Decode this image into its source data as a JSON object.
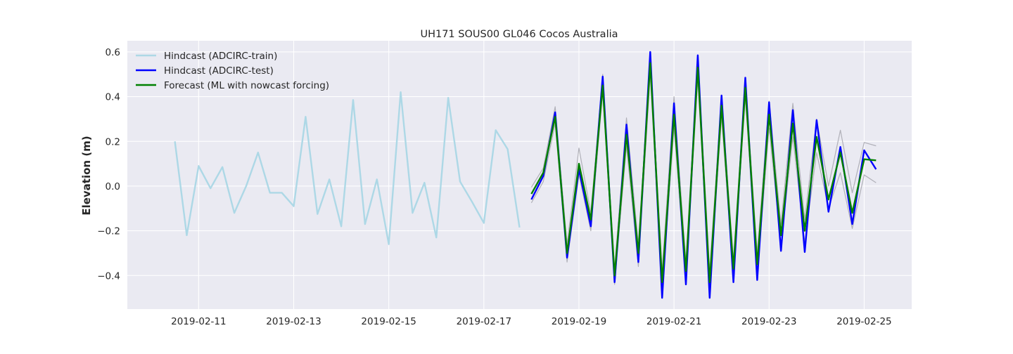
{
  "chart_data": {
    "type": "line",
    "title": "UH171 SOUS00 GL046 Cocos Australia",
    "xlabel": "",
    "ylabel": "Elevation (m)",
    "x_ticks": [
      "2019-02-11",
      "2019-02-13",
      "2019-02-15",
      "2019-02-17",
      "2019-02-19",
      "2019-02-21",
      "2019-02-23",
      "2019-02-25"
    ],
    "y_ticks": [
      "0.6",
      "0.4",
      "0.2",
      "0.0",
      "−0.2",
      "−0.4"
    ],
    "xlim": [
      "2019-02-09T12:00",
      "2019-02-26T00:00"
    ],
    "ylim": [
      -0.55,
      0.65
    ],
    "grid": true,
    "legend_position": "top-left",
    "colors": {
      "background": "#eaeaf2",
      "grid": "#ffffff",
      "train": "#add8e6",
      "test": "#0000ff",
      "forecast": "#008000",
      "band": "#b0b0b8"
    },
    "series": [
      {
        "name": "Hindcast (ADCIRC-train)",
        "color": "#add8e6",
        "x": [
          "2019-02-10T12:00",
          "2019-02-10T18:00",
          "2019-02-11T00:00",
          "2019-02-11T06:00",
          "2019-02-11T12:00",
          "2019-02-11T18:00",
          "2019-02-12T00:00",
          "2019-02-12T06:00",
          "2019-02-12T12:00",
          "2019-02-12T18:00",
          "2019-02-13T00:00",
          "2019-02-13T06:00",
          "2019-02-13T12:00",
          "2019-02-13T18:00",
          "2019-02-14T00:00",
          "2019-02-14T06:00",
          "2019-02-14T12:00",
          "2019-02-14T18:00",
          "2019-02-15T00:00",
          "2019-02-15T06:00",
          "2019-02-15T12:00",
          "2019-02-15T18:00",
          "2019-02-16T00:00",
          "2019-02-16T06:00",
          "2019-02-16T12:00",
          "2019-02-16T18:00",
          "2019-02-17T00:00",
          "2019-02-17T06:00",
          "2019-02-17T12:00",
          "2019-02-17T18:00"
        ],
        "values": [
          0.2,
          -0.22,
          0.09,
          -0.01,
          0.085,
          -0.12,
          0.0,
          0.15,
          -0.03,
          -0.03,
          -0.09,
          0.31,
          -0.125,
          0.03,
          -0.18,
          0.385,
          -0.17,
          0.03,
          -0.26,
          0.42,
          -0.12,
          0.015,
          -0.23,
          0.395,
          0.02,
          -0.07,
          -0.165,
          0.25,
          0.165,
          -0.185
        ]
      },
      {
        "name": "Hindcast (ADCIRC-test)",
        "color": "#0000ff",
        "x": [
          "2019-02-18T00:00",
          "2019-02-18T06:00",
          "2019-02-18T12:00",
          "2019-02-18T18:00",
          "2019-02-19T00:00",
          "2019-02-19T06:00",
          "2019-02-19T12:00",
          "2019-02-19T18:00",
          "2019-02-20T00:00",
          "2019-02-20T06:00",
          "2019-02-20T12:00",
          "2019-02-20T18:00",
          "2019-02-21T00:00",
          "2019-02-21T06:00",
          "2019-02-21T12:00",
          "2019-02-21T18:00",
          "2019-02-22T00:00",
          "2019-02-22T06:00",
          "2019-02-22T12:00",
          "2019-02-22T18:00",
          "2019-02-23T00:00",
          "2019-02-23T06:00",
          "2019-02-23T12:00",
          "2019-02-23T18:00",
          "2019-02-24T00:00",
          "2019-02-24T06:00",
          "2019-02-24T12:00",
          "2019-02-24T18:00",
          "2019-02-25T00:00",
          "2019-02-25T06:00"
        ],
        "values": [
          -0.06,
          0.045,
          0.33,
          -0.32,
          0.075,
          -0.18,
          0.49,
          -0.43,
          0.275,
          -0.34,
          0.6,
          -0.5,
          0.37,
          -0.44,
          0.585,
          -0.5,
          0.405,
          -0.43,
          0.485,
          -0.42,
          0.375,
          -0.29,
          0.34,
          -0.295,
          0.295,
          -0.115,
          0.175,
          -0.17,
          0.16,
          0.075
        ]
      },
      {
        "name": "Forecast (ML with nowcast forcing)",
        "color": "#008000",
        "x": [
          "2019-02-18T00:00",
          "2019-02-18T06:00",
          "2019-02-18T12:00",
          "2019-02-18T18:00",
          "2019-02-19T00:00",
          "2019-02-19T06:00",
          "2019-02-19T12:00",
          "2019-02-19T18:00",
          "2019-02-20T00:00",
          "2019-02-20T06:00",
          "2019-02-20T12:00",
          "2019-02-20T18:00",
          "2019-02-21T00:00",
          "2019-02-21T06:00",
          "2019-02-21T12:00",
          "2019-02-21T18:00",
          "2019-02-22T00:00",
          "2019-02-22T06:00",
          "2019-02-22T12:00",
          "2019-02-22T18:00",
          "2019-02-23T00:00",
          "2019-02-23T06:00",
          "2019-02-23T12:00",
          "2019-02-23T18:00",
          "2019-02-24T00:00",
          "2019-02-24T06:00",
          "2019-02-24T12:00",
          "2019-02-24T18:00",
          "2019-02-25T00:00",
          "2019-02-25T06:00"
        ],
        "values": [
          -0.035,
          0.06,
          0.31,
          -0.3,
          0.1,
          -0.15,
          0.45,
          -0.4,
          0.23,
          -0.3,
          0.55,
          -0.43,
          0.32,
          -0.38,
          0.53,
          -0.43,
          0.36,
          -0.37,
          0.44,
          -0.35,
          0.32,
          -0.22,
          0.28,
          -0.2,
          0.22,
          -0.06,
          0.15,
          -0.12,
          0.12,
          0.115
        ]
      }
    ],
    "band_series": [
      {
        "x": [
          "2019-02-18T00:00",
          "2019-02-18T06:00",
          "2019-02-18T12:00",
          "2019-02-18T18:00",
          "2019-02-19T00:00",
          "2019-02-19T06:00",
          "2019-02-19T12:00",
          "2019-02-19T18:00",
          "2019-02-20T00:00",
          "2019-02-20T06:00",
          "2019-02-20T12:00",
          "2019-02-20T18:00",
          "2019-02-21T00:00",
          "2019-02-21T06:00",
          "2019-02-21T12:00",
          "2019-02-21T18:00",
          "2019-02-22T00:00",
          "2019-02-22T06:00",
          "2019-02-22T12:00",
          "2019-02-22T18:00",
          "2019-02-23T00:00",
          "2019-02-23T06:00",
          "2019-02-23T12:00",
          "2019-02-23T18:00",
          "2019-02-24T00:00",
          "2019-02-24T06:00",
          "2019-02-24T12:00",
          "2019-02-24T18:00",
          "2019-02-25T00:00",
          "2019-02-25T06:00"
        ],
        "values": [
          -0.005,
          0.08,
          0.355,
          -0.26,
          0.17,
          -0.12,
          0.5,
          -0.37,
          0.305,
          -0.26,
          0.57,
          -0.38,
          0.4,
          -0.34,
          0.58,
          -0.38,
          0.4,
          -0.33,
          0.48,
          -0.3,
          0.38,
          -0.17,
          0.37,
          -0.15,
          0.3,
          0.0,
          0.25,
          -0.03,
          0.195,
          0.18
        ]
      },
      {
        "x": [
          "2019-02-18T00:00",
          "2019-02-18T06:00",
          "2019-02-18T12:00",
          "2019-02-18T18:00",
          "2019-02-19T00:00",
          "2019-02-19T06:00",
          "2019-02-19T12:00",
          "2019-02-19T18:00",
          "2019-02-20T00:00",
          "2019-02-20T06:00",
          "2019-02-20T12:00",
          "2019-02-20T18:00",
          "2019-02-21T00:00",
          "2019-02-21T06:00",
          "2019-02-21T12:00",
          "2019-02-21T18:00",
          "2019-02-22T00:00",
          "2019-02-22T06:00",
          "2019-02-22T12:00",
          "2019-02-22T18:00",
          "2019-02-23T00:00",
          "2019-02-23T06:00",
          "2019-02-23T12:00",
          "2019-02-23T18:00",
          "2019-02-24T00:00",
          "2019-02-24T06:00",
          "2019-02-24T12:00",
          "2019-02-24T18:00",
          "2019-02-25T00:00",
          "2019-02-25T06:00"
        ],
        "values": [
          -0.075,
          0.02,
          0.28,
          -0.34,
          0.05,
          -0.2,
          0.42,
          -0.44,
          0.18,
          -0.36,
          0.5,
          -0.47,
          0.26,
          -0.42,
          0.48,
          -0.47,
          0.31,
          -0.41,
          0.4,
          -0.4,
          0.26,
          -0.26,
          0.22,
          -0.25,
          0.15,
          -0.1,
          0.06,
          -0.19,
          0.05,
          0.015
        ]
      }
    ]
  }
}
